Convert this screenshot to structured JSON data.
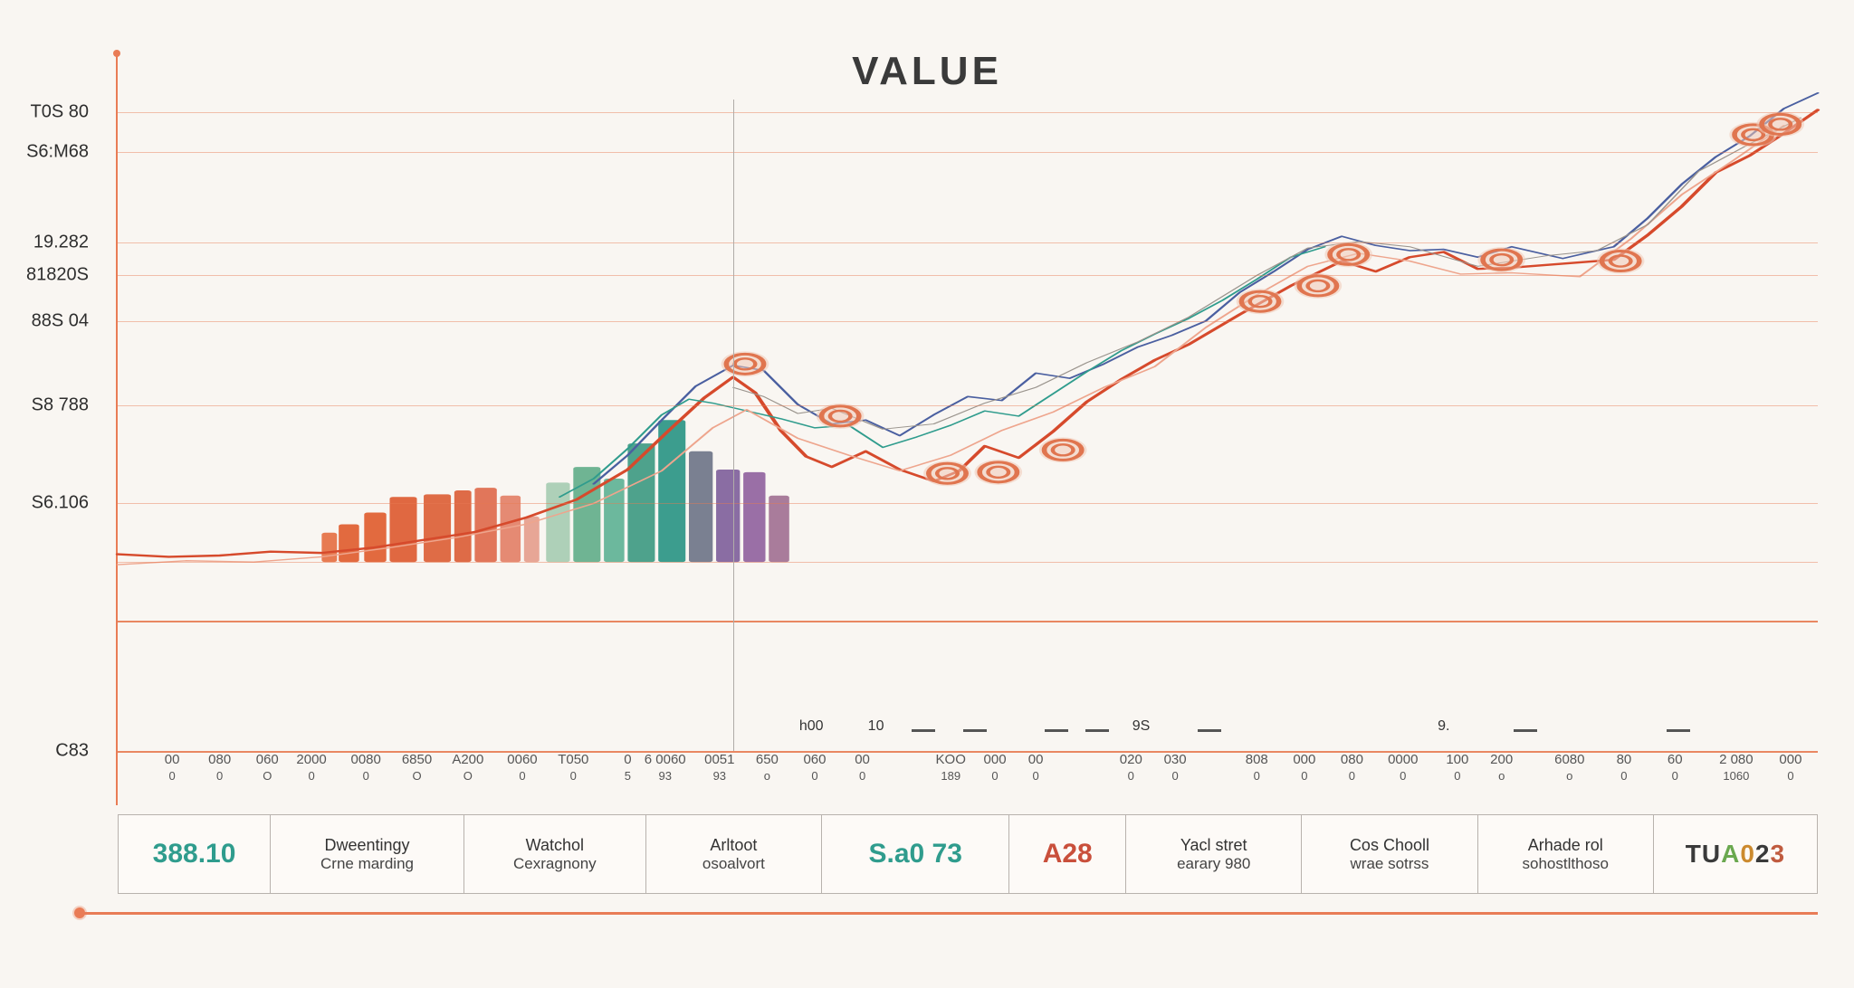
{
  "title": "VALUE",
  "title_fontsize": 44,
  "title_letterspacing": 4,
  "title_color": "#3a3a3a",
  "background_color": "#f9f6f2",
  "grid": {
    "color_primary": "#e77b52",
    "color_secondary": "#d6d0c9",
    "positions_pct": [
      2,
      8,
      22,
      27,
      34,
      47,
      62,
      71,
      80,
      100
    ],
    "style": [
      "thin",
      "thin",
      "thin",
      "thin",
      "thin",
      "thin",
      "thin",
      "thin",
      "thick",
      "thick"
    ]
  },
  "y_axis": {
    "labels": [
      "T0S 80",
      "S6:M68",
      "19.282",
      "81820S",
      "88S 04",
      "S8 788",
      "S6.106",
      "C83"
    ],
    "positions_pct": [
      2,
      8,
      22,
      27,
      34,
      47,
      62,
      100
    ],
    "label_color": "#2e2e2e",
    "label_fontsize": 20,
    "axis_line_color": "#e97c56"
  },
  "vlines": {
    "positions_pct": [
      36.2
    ],
    "color": "#b0aca8"
  },
  "bars": {
    "baseline_pct": 71,
    "items": [
      {
        "x_pct": 12.0,
        "w_pct": 0.9,
        "h_pct": 4.5,
        "color": "#e77b52"
      },
      {
        "x_pct": 13.0,
        "w_pct": 1.2,
        "h_pct": 5.8,
        "color": "#e26a3f"
      },
      {
        "x_pct": 14.5,
        "w_pct": 1.3,
        "h_pct": 7.6,
        "color": "#e26a3f"
      },
      {
        "x_pct": 16.0,
        "w_pct": 1.6,
        "h_pct": 10.0,
        "color": "#e06841"
      },
      {
        "x_pct": 18.0,
        "w_pct": 1.6,
        "h_pct": 10.4,
        "color": "#df6c46"
      },
      {
        "x_pct": 19.8,
        "w_pct": 1.0,
        "h_pct": 11.0,
        "color": "#de6b47"
      },
      {
        "x_pct": 21.0,
        "w_pct": 1.3,
        "h_pct": 11.4,
        "color": "#e1765a"
      },
      {
        "x_pct": 22.5,
        "w_pct": 1.2,
        "h_pct": 10.2,
        "color": "#e58a73"
      },
      {
        "x_pct": 23.9,
        "w_pct": 0.9,
        "h_pct": 7.0,
        "color": "#e7a696"
      },
      {
        "x_pct": 25.2,
        "w_pct": 1.4,
        "h_pct": 12.2,
        "color": "#aed0b8"
      },
      {
        "x_pct": 26.8,
        "w_pct": 1.6,
        "h_pct": 14.6,
        "color": "#6fb493"
      },
      {
        "x_pct": 28.6,
        "w_pct": 1.2,
        "h_pct": 12.8,
        "color": "#6cb89d"
      },
      {
        "x_pct": 30.0,
        "w_pct": 1.6,
        "h_pct": 18.2,
        "color": "#4ea28c"
      },
      {
        "x_pct": 31.8,
        "w_pct": 1.6,
        "h_pct": 21.8,
        "color": "#3c9d8e"
      },
      {
        "x_pct": 33.6,
        "w_pct": 1.4,
        "h_pct": 17.0,
        "color": "#7a8091"
      },
      {
        "x_pct": 35.2,
        "w_pct": 1.4,
        "h_pct": 14.2,
        "color": "#8a6da3"
      },
      {
        "x_pct": 36.8,
        "w_pct": 1.3,
        "h_pct": 13.8,
        "color": "#9a6fa6"
      },
      {
        "x_pct": 38.3,
        "w_pct": 1.2,
        "h_pct": 10.2,
        "color": "#a97c9b"
      }
    ]
  },
  "line_series": [
    {
      "name": "red-main",
      "color": "#d64a2c",
      "width": 2.4,
      "points": [
        [
          0,
          69.8
        ],
        [
          3,
          70.2
        ],
        [
          6,
          70.0
        ],
        [
          9,
          69.4
        ],
        [
          12,
          69.6
        ],
        [
          15,
          68.8
        ],
        [
          18,
          67.6
        ],
        [
          21,
          66.4
        ],
        [
          24,
          64.2
        ],
        [
          27,
          61.4
        ],
        [
          30,
          56.8
        ],
        [
          32.5,
          50.6
        ],
        [
          34.5,
          45.8
        ],
        [
          36.2,
          42.6
        ],
        [
          37.5,
          45.0
        ],
        [
          39,
          50.8
        ],
        [
          40.5,
          54.8
        ],
        [
          42,
          56.4
        ],
        [
          44,
          54.0
        ],
        [
          46,
          56.8
        ],
        [
          48,
          58.6
        ],
        [
          49.5,
          57.0
        ],
        [
          51,
          53.2
        ],
        [
          53,
          55.0
        ],
        [
          55,
          51.0
        ],
        [
          57,
          46.4
        ],
        [
          59,
          43.0
        ],
        [
          61,
          40.0
        ],
        [
          63,
          37.6
        ],
        [
          66,
          33.0
        ],
        [
          69,
          28.6
        ],
        [
          72,
          24.8
        ],
        [
          74,
          26.4
        ],
        [
          76,
          24.2
        ],
        [
          78,
          23.4
        ],
        [
          80,
          26.0
        ],
        [
          82,
          25.8
        ],
        [
          85,
          25.2
        ],
        [
          88,
          24.6
        ],
        [
          90,
          20.8
        ],
        [
          92,
          16.4
        ],
        [
          94,
          11.2
        ],
        [
          96,
          8.6
        ],
        [
          98,
          5.2
        ],
        [
          100,
          1.6
        ]
      ]
    },
    {
      "name": "blue-line",
      "color": "#4a5fa0",
      "width": 1.6,
      "points": [
        [
          28,
          59.0
        ],
        [
          30,
          54.6
        ],
        [
          32,
          49.2
        ],
        [
          34,
          44.0
        ],
        [
          36.2,
          40.8
        ],
        [
          38,
          41.6
        ],
        [
          40,
          46.8
        ],
        [
          42,
          49.8
        ],
        [
          44,
          49.2
        ],
        [
          46,
          51.6
        ],
        [
          48,
          48.4
        ],
        [
          50,
          45.6
        ],
        [
          52,
          46.2
        ],
        [
          54,
          42.0
        ],
        [
          56,
          42.8
        ],
        [
          58,
          40.6
        ],
        [
          60,
          38.0
        ],
        [
          62,
          36.2
        ],
        [
          64,
          34.0
        ],
        [
          66,
          29.6
        ],
        [
          68,
          26.4
        ],
        [
          70,
          23.0
        ],
        [
          72,
          21.0
        ],
        [
          74,
          22.4
        ],
        [
          76,
          23.2
        ],
        [
          78,
          23.0
        ],
        [
          80,
          24.2
        ],
        [
          82,
          22.6
        ],
        [
          85,
          24.4
        ],
        [
          88,
          22.6
        ],
        [
          90,
          18.2
        ],
        [
          92,
          13.0
        ],
        [
          94,
          8.8
        ],
        [
          96,
          5.6
        ],
        [
          98,
          1.4
        ],
        [
          100,
          -1.0
        ]
      ]
    },
    {
      "name": "teal-line",
      "color": "#2f9c8d",
      "width": 1.4,
      "points": [
        [
          26,
          61.0
        ],
        [
          28,
          58.2
        ],
        [
          30,
          53.6
        ],
        [
          32,
          48.4
        ],
        [
          33.6,
          46.0
        ],
        [
          35,
          46.6
        ],
        [
          37,
          47.8
        ],
        [
          39,
          49.0
        ],
        [
          41,
          50.4
        ],
        [
          43,
          50.0
        ],
        [
          45,
          53.4
        ],
        [
          47,
          51.8
        ],
        [
          49,
          50.0
        ],
        [
          51,
          47.8
        ],
        [
          53,
          48.6
        ],
        [
          55,
          45.2
        ],
        [
          57,
          41.8
        ],
        [
          59,
          38.6
        ],
        [
          61,
          36.0
        ],
        [
          63,
          33.6
        ],
        [
          65,
          30.8
        ],
        [
          67,
          27.6
        ],
        [
          69,
          24.2
        ],
        [
          71,
          22.6
        ]
      ]
    },
    {
      "name": "light-red",
      "color": "#eea58d",
      "width": 1.4,
      "points": [
        [
          0,
          71.4
        ],
        [
          4,
          70.8
        ],
        [
          8,
          71.0
        ],
        [
          12,
          70.2
        ],
        [
          16,
          68.8
        ],
        [
          20,
          67.2
        ],
        [
          24,
          65.2
        ],
        [
          28,
          62.0
        ],
        [
          32,
          57.0
        ],
        [
          35,
          50.4
        ],
        [
          37,
          47.6
        ],
        [
          40,
          52.0
        ],
        [
          43,
          54.6
        ],
        [
          46,
          57.0
        ],
        [
          49,
          54.6
        ],
        [
          52,
          50.8
        ],
        [
          55,
          48.0
        ],
        [
          58,
          44.2
        ],
        [
          61,
          41.0
        ],
        [
          64,
          35.0
        ],
        [
          67,
          30.0
        ],
        [
          70,
          25.6
        ],
        [
          73,
          23.6
        ],
        [
          76,
          24.8
        ],
        [
          79,
          26.8
        ],
        [
          82,
          26.6
        ],
        [
          86,
          27.2
        ],
        [
          89,
          21.4
        ],
        [
          92,
          14.6
        ],
        [
          95,
          9.4
        ],
        [
          98,
          4.0
        ]
      ]
    },
    {
      "name": "grey-thin",
      "color": "#9a948d",
      "width": 1.0,
      "points": [
        [
          36.2,
          44.2
        ],
        [
          38,
          45.6
        ],
        [
          40,
          48.2
        ],
        [
          42,
          47.4
        ],
        [
          45,
          50.6
        ],
        [
          48,
          49.8
        ],
        [
          51,
          46.6
        ],
        [
          54,
          44.2
        ],
        [
          57,
          40.4
        ],
        [
          60,
          37.2
        ],
        [
          63,
          33.4
        ],
        [
          67,
          27.0
        ],
        [
          70,
          22.8
        ],
        [
          73,
          21.8
        ],
        [
          76,
          22.6
        ],
        [
          80,
          25.6
        ],
        [
          84,
          24.0
        ],
        [
          87,
          23.2
        ],
        [
          90,
          19.2
        ],
        [
          93,
          11.0
        ],
        [
          96,
          6.8
        ],
        [
          99,
          2.8
        ]
      ]
    }
  ],
  "markers": {
    "color": "#e0754f",
    "inner_color": "#f1c8b7",
    "radius": 11,
    "points": [
      [
        36.9,
        40.6
      ],
      [
        42.5,
        48.6
      ],
      [
        48.8,
        57.4
      ],
      [
        51.8,
        57.2
      ],
      [
        55.6,
        53.8
      ],
      [
        67.2,
        31.0
      ],
      [
        70.6,
        28.6
      ],
      [
        72.4,
        23.8
      ],
      [
        81.4,
        24.6
      ],
      [
        88.4,
        24.8
      ],
      [
        96.2,
        5.4
      ],
      [
        97.8,
        3.8
      ]
    ]
  },
  "x_axis": {
    "ticks": [
      {
        "x_pct": 3.2,
        "top": "00",
        "bot": "0"
      },
      {
        "x_pct": 6.0,
        "top": "080",
        "bot": "0"
      },
      {
        "x_pct": 8.8,
        "top": "060",
        "bot": "O"
      },
      {
        "x_pct": 11.4,
        "top": "2000",
        "bot": "0"
      },
      {
        "x_pct": 14.6,
        "top": "0080",
        "bot": "0"
      },
      {
        "x_pct": 17.6,
        "top": "6850",
        "bot": "O"
      },
      {
        "x_pct": 20.6,
        "top": "A200",
        "bot": "O"
      },
      {
        "x_pct": 23.8,
        "top": "0060",
        "bot": "0"
      },
      {
        "x_pct": 26.8,
        "top": "T050",
        "bot": "0"
      },
      {
        "x_pct": 30.0,
        "top": "0",
        "bot": "5"
      },
      {
        "x_pct": 32.2,
        "top": "6 0060",
        "bot": "93"
      },
      {
        "x_pct": 35.4,
        "top": "0051",
        "bot": "93"
      },
      {
        "x_pct": 38.2,
        "top": "650",
        "bot": "o"
      },
      {
        "x_pct": 41.0,
        "top": "060",
        "bot": "0"
      },
      {
        "x_pct": 43.8,
        "top": "00",
        "bot": "0"
      },
      {
        "x_pct": 49.0,
        "top": "KOO",
        "bot": "189"
      },
      {
        "x_pct": 51.6,
        "top": "000",
        "bot": "0"
      },
      {
        "x_pct": 54.0,
        "top": "00",
        "bot": "0"
      },
      {
        "x_pct": 59.6,
        "top": "020",
        "bot": "0"
      },
      {
        "x_pct": 62.2,
        "top": "030",
        "bot": "0"
      },
      {
        "x_pct": 67.0,
        "top": "808",
        "bot": "0"
      },
      {
        "x_pct": 69.8,
        "top": "000",
        "bot": "0"
      },
      {
        "x_pct": 72.6,
        "top": "080",
        "bot": "0"
      },
      {
        "x_pct": 75.6,
        "top": "0000",
        "bot": "0"
      },
      {
        "x_pct": 78.8,
        "top": "100",
        "bot": "0"
      },
      {
        "x_pct": 81.4,
        "top": "200",
        "bot": "o"
      },
      {
        "x_pct": 85.4,
        "top": "6080",
        "bot": "o"
      },
      {
        "x_pct": 88.6,
        "top": "80",
        "bot": "0"
      },
      {
        "x_pct": 91.6,
        "top": "60",
        "bot": "0"
      },
      {
        "x_pct": 95.2,
        "top": "2 080",
        "bot": "1060"
      },
      {
        "x_pct": 98.4,
        "top": "000",
        "bot": "0"
      }
    ],
    "top_markers": [
      {
        "x_pct": 40.8,
        "text": "h00"
      },
      {
        "x_pct": 44.6,
        "text": "10"
      },
      {
        "x_pct": 60.2,
        "text": "9S"
      },
      {
        "x_pct": 78.0,
        "text": "9."
      }
    ],
    "dashes_x_pct": [
      47.4,
      50.4,
      55.2,
      57.6,
      64.2,
      82.8,
      91.8
    ]
  },
  "bottom_panel": {
    "cells": [
      {
        "type": "big",
        "value": "388.10",
        "color": "#2f9c8d",
        "flex": 1.0
      },
      {
        "type": "two",
        "line1": "Dweentingy",
        "line2": "Crne marding",
        "flex": 1.35
      },
      {
        "type": "two",
        "line1": "Watchol",
        "line2": "Cexragnony",
        "flex": 1.25
      },
      {
        "type": "two",
        "line1": "Arltoot",
        "line2": "osoalvort",
        "flex": 1.2
      },
      {
        "type": "big",
        "value": "S.a0 73",
        "color": "#2f9c8d",
        "flex": 1.3
      },
      {
        "type": "big",
        "value": "A28",
        "color": "#c94f3b",
        "flex": 0.7
      },
      {
        "type": "two",
        "line1": "Yacl stret",
        "line2": "earary 980",
        "flex": 1.2
      },
      {
        "type": "two",
        "line1": "Cos Chooll",
        "line2": "wrae sotrss",
        "flex": 1.2
      },
      {
        "type": "two",
        "line1": "Arhade rol",
        "line2": "sohostlthoso",
        "flex": 1.2
      },
      {
        "type": "logo",
        "value": "TUA023",
        "flex": 1.1
      }
    ]
  }
}
